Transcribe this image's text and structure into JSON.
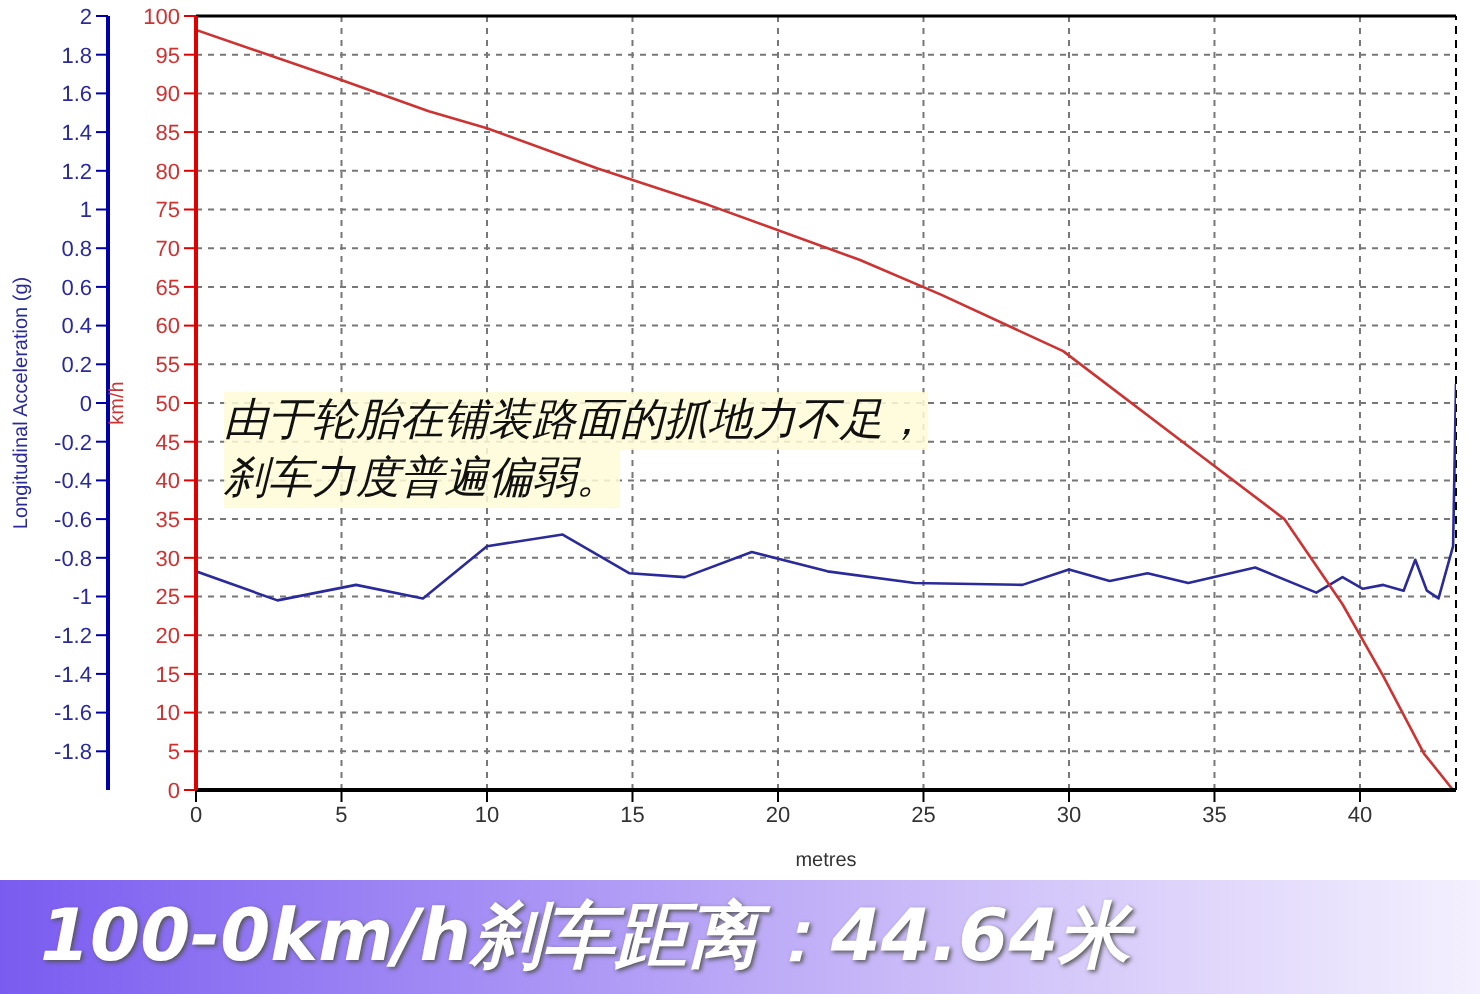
{
  "chart_data": {
    "type": "line",
    "title": "100-0km/h刹车距离：44.64米",
    "xlabel": "metres",
    "ylabel": "Longitudinal Acceleration (g)",
    "y2label": "km/h",
    "annotations": [
      "由于轮胎在铺装路面的抓地力不足，",
      "刹车力度普遍偏弱。"
    ],
    "xlim": [
      0,
      43.3
    ],
    "xticks": [
      0,
      5,
      10,
      15,
      20,
      25,
      30,
      35,
      40
    ],
    "ylim": [
      -2,
      2
    ],
    "yticks": [
      -1.8,
      -1.6,
      -1.4,
      -1.2,
      -1,
      -0.8,
      -0.6,
      -0.4,
      -0.2,
      0,
      0.2,
      0.4,
      0.6,
      0.8,
      1,
      1.2,
      1.4,
      1.6,
      1.8,
      2
    ],
    "y2lim": [
      0,
      100
    ],
    "y2ticks": [
      0,
      5,
      10,
      15,
      20,
      25,
      30,
      35,
      40,
      45,
      50,
      55,
      60,
      65,
      70,
      75,
      80,
      85,
      90,
      95,
      100
    ],
    "grid": "y2",
    "marker": "none",
    "line_style": "solid",
    "legend": false,
    "series": [
      {
        "color": "#2a2a9a",
        "x": [
          0,
          2.8,
          5.5,
          7.8,
          10,
          12.6,
          14.9,
          16.8,
          19.1,
          21.7,
          24.7,
          28.4,
          30,
          31.4,
          32.7,
          34.1,
          36.4,
          38.5,
          39.4,
          40.1,
          40.8,
          41.5,
          41.9,
          42.3,
          42.7,
          43.2,
          43.3
        ],
        "values": [
          -0.87,
          -1.02,
          -0.94,
          -1.01,
          -0.74,
          -0.68,
          -0.88,
          -0.9,
          -0.77,
          -0.87,
          -0.93,
          -0.94,
          -0.86,
          -0.92,
          -0.88,
          -0.93,
          -0.85,
          -0.98,
          -0.9,
          -0.96,
          -0.94,
          -0.97,
          -0.81,
          -0.97,
          -1.01,
          -0.74,
          0.1
        ]
      },
      {
        "color": "#cc3333",
        "axis": "y2",
        "x": [
          0,
          4.8,
          8,
          10,
          13.8,
          17.6,
          22.8,
          25.6,
          29.8,
          34.6,
          37.4,
          39.4,
          40.8,
          42.2,
          43.2
        ],
        "values": [
          98.2,
          92,
          87.7,
          85.5,
          80.3,
          75.6,
          68.5,
          64,
          56.7,
          43,
          35,
          24,
          14.7,
          4.7,
          0
        ]
      }
    ]
  }
}
